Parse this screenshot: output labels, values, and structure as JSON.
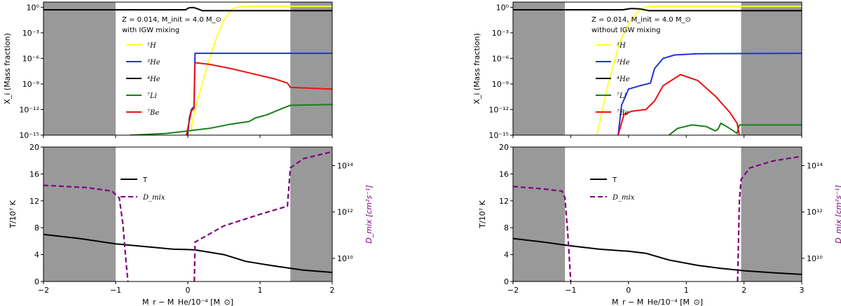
{
  "colors": {
    "H1": "#ffff33",
    "He3": "#1f33dd",
    "He4": "#000000",
    "Li7": "#1a7f1a",
    "Be7": "#ee1111",
    "T": "#000000",
    "Dmix": "#800080",
    "shade": "#999999"
  },
  "panels": [
    {
      "id": "left",
      "annotation_line1": "Z = 0.014,  M_init = 4.0 M_⊙",
      "annotation_line2": "with IGW mixing",
      "xlim": [
        -2,
        2
      ],
      "xticks": [
        -2,
        -1,
        0,
        1,
        2
      ],
      "xtick_labels": [
        "−2",
        "−1",
        "0",
        "1",
        "2"
      ],
      "shaded": [
        [
          -2,
          -1
        ],
        [
          1.42,
          2
        ]
      ],
      "top_ylim_log": [
        -15,
        0.6
      ],
      "top_yticks": [
        0,
        -3,
        -6,
        -9,
        -12,
        -15
      ],
      "top_ytick_labels": [
        "10⁰",
        "10⁻³",
        "10⁻⁶",
        "10⁻⁹",
        "10⁻¹²",
        "10⁻¹⁵"
      ],
      "top_ylabel": "X_i (Mass fraction)",
      "bottom_ylim": [
        0,
        20
      ],
      "bottom_yticks": [
        0,
        4,
        8,
        12,
        16,
        20
      ],
      "bottom_ylabel": "T/10⁷ K",
      "right_ylim_log": [
        9,
        14.8
      ],
      "right_yticks": [
        10,
        12,
        14
      ],
      "right_ytick_labels": [
        "10¹⁰",
        "10¹²",
        "10¹⁴"
      ],
      "right_ylabel": "D_mix [cm²s⁻¹]",
      "xlabel": "M_r − M_He/10⁻⁴ [M_⊙]",
      "legend_top": [
        "¹H",
        "³He",
        "⁴He",
        "⁷Li",
        "⁷Be"
      ],
      "legend_bottom": [
        "T",
        "D_mix"
      ],
      "series": {
        "H1": [
          [
            0.03,
            -15
          ],
          [
            0.1,
            -12
          ],
          [
            0.2,
            -9
          ],
          [
            0.3,
            -6
          ],
          [
            0.4,
            -3.5
          ],
          [
            0.5,
            -1.5
          ],
          [
            0.6,
            -0.3
          ],
          [
            0.7,
            0.05
          ],
          [
            0.8,
            0.1
          ],
          [
            2,
            0.1
          ]
        ],
        "He3": [
          [
            0.0,
            -15
          ],
          [
            0.02,
            -13
          ],
          [
            0.05,
            -12
          ],
          [
            0.08,
            -11.7
          ],
          [
            0.085,
            -11.8
          ],
          [
            0.1,
            -5.4
          ],
          [
            2,
            -5.4
          ]
        ],
        "He4": [
          [
            -2,
            -0.3
          ],
          [
            -0.03,
            -0.3
          ],
          [
            0.0,
            -0.12
          ],
          [
            0.03,
            -0.05
          ],
          [
            0.08,
            -0.04
          ],
          [
            0.12,
            -0.15
          ],
          [
            0.2,
            -0.4
          ],
          [
            2,
            -0.4
          ]
        ],
        "Li7": [
          [
            -0.8,
            -15
          ],
          [
            -0.3,
            -14.8
          ],
          [
            0.3,
            -14.2
          ],
          [
            0.6,
            -13.7
          ],
          [
            0.85,
            -13.4
          ],
          [
            0.93,
            -13.0
          ],
          [
            1.1,
            -12.6
          ],
          [
            1.3,
            -11.9
          ],
          [
            1.42,
            -11.5
          ],
          [
            2,
            -11.4
          ]
        ],
        "Be7": [
          [
            -0.02,
            -15
          ],
          [
            0.05,
            -12.2
          ],
          [
            0.08,
            -11.9
          ],
          [
            0.085,
            -11.9
          ],
          [
            0.1,
            -6.5
          ],
          [
            0.3,
            -6.7
          ],
          [
            0.6,
            -7.2
          ],
          [
            0.9,
            -7.8
          ],
          [
            1.2,
            -8.4
          ],
          [
            1.38,
            -8.9
          ],
          [
            1.42,
            -9.4
          ],
          [
            2,
            -9.6
          ]
        ],
        "T": [
          [
            -2,
            7.0
          ],
          [
            -1.5,
            6.4
          ],
          [
            -1,
            5.6
          ],
          [
            -0.5,
            5.1
          ],
          [
            -0.2,
            4.8
          ],
          [
            0,
            4.75
          ],
          [
            0.1,
            4.7
          ],
          [
            0.5,
            4.0
          ],
          [
            0.8,
            3.0
          ],
          [
            1.2,
            2.3
          ],
          [
            1.6,
            1.7
          ],
          [
            2,
            1.35
          ]
        ],
        "Dmix": [
          [
            -2,
            13.15
          ],
          [
            -1.4,
            13.05
          ],
          [
            -1.05,
            12.9
          ],
          [
            -0.95,
            12.6
          ],
          [
            -0.9,
            11.5
          ],
          [
            -0.86,
            10.0
          ],
          [
            -0.83,
            9.0
          ],
          [
            null,
            null
          ],
          [
            0.09,
            9.0
          ],
          [
            0.1,
            10.7
          ],
          [
            0.5,
            11.4
          ],
          [
            1.0,
            11.9
          ],
          [
            1.38,
            12.25
          ],
          [
            1.42,
            13.9
          ],
          [
            1.6,
            14.3
          ],
          [
            2,
            14.6
          ]
        ]
      }
    },
    {
      "id": "right",
      "annotation_line1": "Z = 0.014,  M_init = 4.0 M_⊙",
      "annotation_line2": "without IGW mixing",
      "xlim": [
        -2,
        3
      ],
      "xticks": [
        -2,
        -1,
        0,
        1,
        2,
        3
      ],
      "xtick_labels": [
        "−2",
        "−1",
        "0",
        "1",
        "2",
        "3"
      ],
      "shaded": [
        [
          -2,
          -1.1
        ],
        [
          1.95,
          3
        ]
      ],
      "top_ylim_log": [
        -15,
        0.6
      ],
      "top_yticks": [
        0,
        -3,
        -6,
        -9,
        -12,
        -15
      ],
      "top_ytick_labels": [
        "10⁰",
        "10⁻³",
        "10⁻⁶",
        "10⁻⁹",
        "10⁻¹²",
        "10⁻¹⁵"
      ],
      "top_ylabel": "X_i (Mass fraction)",
      "bottom_ylim": [
        0,
        20
      ],
      "bottom_yticks": [
        0,
        4,
        8,
        12,
        16,
        20
      ],
      "bottom_ylabel": "T/10⁷ K",
      "right_ylim_log": [
        9,
        14.8
      ],
      "right_yticks": [
        10,
        12,
        14
      ],
      "right_ytick_labels": [
        "10¹⁰",
        "10¹²",
        "10¹⁴"
      ],
      "right_ylabel": "D_mix [cm²s⁻¹]",
      "xlabel": "M_r − M_He/10⁻⁴ [M_⊙]",
      "legend_top": [
        "¹H",
        "³He",
        "⁴He",
        "⁷Li",
        "⁷Be"
      ],
      "legend_bottom": [
        "T",
        "D_mix"
      ],
      "series": {
        "H1": [
          [
            -0.55,
            -15
          ],
          [
            -0.45,
            -12
          ],
          [
            -0.35,
            -9
          ],
          [
            -0.25,
            -6.5
          ],
          [
            -0.15,
            -4
          ],
          [
            0,
            -2
          ],
          [
            0.15,
            -0.6
          ],
          [
            0.3,
            0.05
          ],
          [
            0.45,
            0.1
          ],
          [
            3,
            0.1
          ]
        ],
        "He3": [
          [
            -0.18,
            -15
          ],
          [
            -0.12,
            -11.5
          ],
          [
            0,
            -9.6
          ],
          [
            0.2,
            -9.2
          ],
          [
            0.38,
            -8.9
          ],
          [
            0.45,
            -7.2
          ],
          [
            0.6,
            -6.0
          ],
          [
            0.8,
            -5.6
          ],
          [
            1.2,
            -5.45
          ],
          [
            3,
            -5.4
          ]
        ],
        "He4": [
          [
            -2,
            -0.3
          ],
          [
            -0.1,
            -0.3
          ],
          [
            0.05,
            -0.15
          ],
          [
            0.2,
            -0.2
          ],
          [
            0.35,
            -0.4
          ],
          [
            3,
            -0.4
          ]
        ],
        "Li7": [
          [
            0.7,
            -15
          ],
          [
            0.85,
            -14.2
          ],
          [
            1.1,
            -13.8
          ],
          [
            1.35,
            -14.0
          ],
          [
            1.5,
            -14.5
          ],
          [
            1.55,
            -14.3
          ],
          [
            1.6,
            -13.6
          ],
          [
            1.65,
            -13.8
          ],
          [
            1.75,
            -14.2
          ],
          [
            1.88,
            -14.8
          ],
          [
            1.92,
            -13.8
          ],
          [
            3,
            -13.8
          ]
        ],
        "Be7": [
          [
            -0.18,
            -15
          ],
          [
            -0.08,
            -12.6
          ],
          [
            0.05,
            -12.2
          ],
          [
            0.3,
            -12.0
          ],
          [
            0.45,
            -11.0
          ],
          [
            0.6,
            -9.2
          ],
          [
            0.9,
            -7.9
          ],
          [
            1.2,
            -8.6
          ],
          [
            1.5,
            -10.4
          ],
          [
            1.75,
            -12.3
          ],
          [
            1.88,
            -13.6
          ],
          [
            1.92,
            -15
          ]
        ],
        "T": [
          [
            -2,
            6.4
          ],
          [
            -1.5,
            5.9
          ],
          [
            -1,
            5.3
          ],
          [
            -0.5,
            4.8
          ],
          [
            0,
            4.5
          ],
          [
            0.3,
            4.2
          ],
          [
            0.7,
            3.2
          ],
          [
            1.2,
            2.4
          ],
          [
            1.6,
            1.95
          ],
          [
            2,
            1.6
          ],
          [
            2.5,
            1.3
          ],
          [
            3,
            1.05
          ]
        ],
        "Dmix": [
          [
            -2,
            13.1
          ],
          [
            -1.5,
            13.0
          ],
          [
            -1.15,
            12.9
          ],
          [
            -1.1,
            12.6
          ],
          [
            -1.05,
            11.0
          ],
          [
            -1.0,
            9.0
          ],
          [
            null,
            null
          ],
          [
            1.89,
            9.0
          ],
          [
            1.92,
            12.5
          ],
          [
            1.95,
            13.4
          ],
          [
            2.1,
            13.9
          ],
          [
            2.5,
            14.2
          ],
          [
            3,
            14.4
          ]
        ]
      }
    }
  ],
  "chart_data": [
    {
      "type": "line",
      "title": "Z = 0.014, M_init = 4.0 M_⊙ with IGW mixing",
      "xlabel": "M_r − M_He/10⁻⁴ [M_⊙]",
      "ylabel_top": "X_i (Mass fraction)",
      "ylabel_bottom": "T/10⁷ K",
      "ylabel_right": "D_mix [cm²s⁻¹]",
      "series": [
        "¹H",
        "³He",
        "⁴He",
        "⁷Li",
        "⁷Be",
        "T",
        "D_mix"
      ]
    },
    {
      "type": "line",
      "title": "Z = 0.014, M_init = 4.0 M_⊙ without IGW mixing",
      "xlabel": "M_r − M_He/10⁻⁴ [M_⊙]",
      "ylabel_top": "X_i (Mass fraction)",
      "ylabel_bottom": "T/10⁷ K",
      "ylabel_right": "D_mix [cm²s⁻¹]",
      "series": [
        "¹H",
        "³He",
        "⁴He",
        "⁷Li",
        "⁷Be",
        "T",
        "D_mix"
      ]
    }
  ]
}
